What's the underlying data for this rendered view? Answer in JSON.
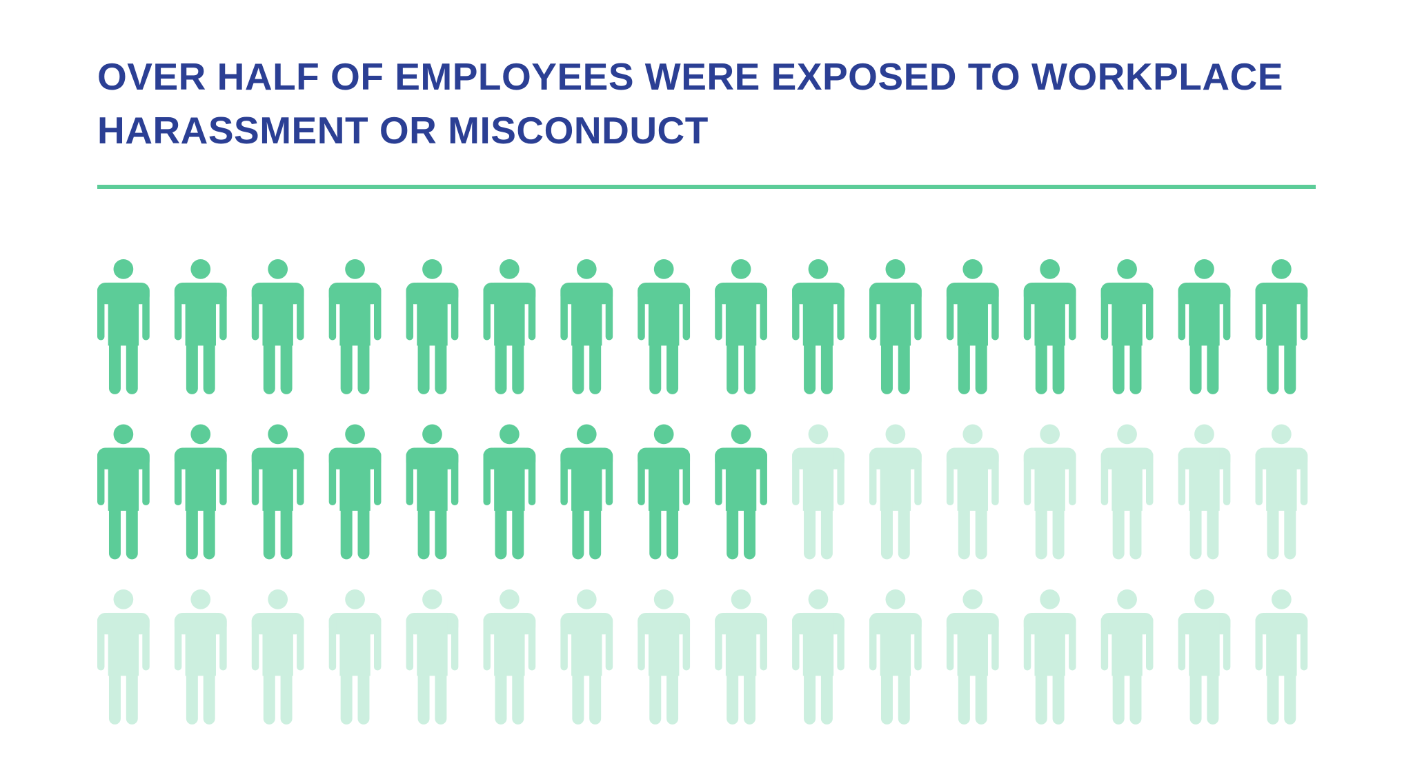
{
  "chart_data": {
    "type": "pictogram",
    "title": "OVER HALF OF EMPLOYEES WERE EXPOSED TO WORKPLACE HARASSMENT OR MISCONDUCT",
    "series": [
      {
        "color": "#5ccc98",
        "values": [
          25
        ]
      },
      {
        "color": "#ccefdf",
        "values": [
          23
        ]
      }
    ]
  }
}
